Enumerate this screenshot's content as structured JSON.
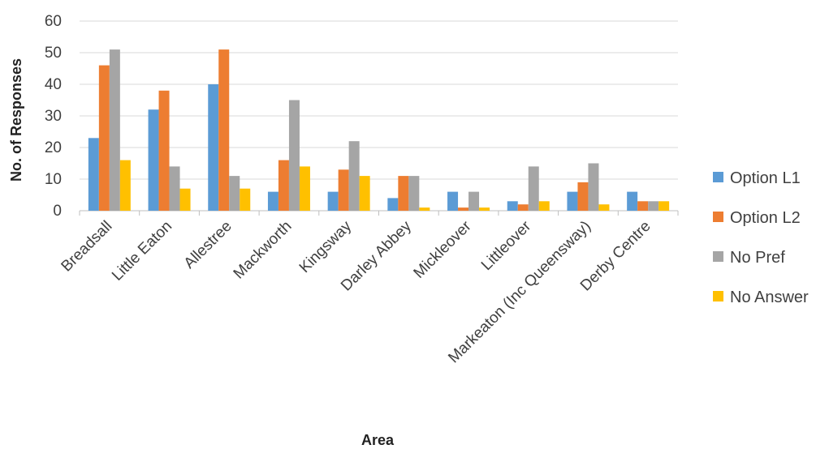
{
  "chart_data": {
    "type": "bar",
    "xlabel": "Area",
    "ylabel": "No. of Responses",
    "ylim": [
      0,
      60
    ],
    "yticks": [
      0,
      10,
      20,
      30,
      40,
      50,
      60
    ],
    "grid": true,
    "legend_position": "right",
    "categories": [
      "Breadsall",
      "Little Eaton",
      "Allestree",
      "Mackworth",
      "Kingsway",
      "Darley Abbey",
      "Mickleover",
      "Littleover",
      "Markeaton (Inc Queensway)",
      "Derby Centre"
    ],
    "series": [
      {
        "name": "Option L1",
        "color": "#5b9bd5",
        "values": [
          23,
          32,
          40,
          6,
          6,
          4,
          6,
          3,
          6,
          6
        ]
      },
      {
        "name": "Option L2",
        "color": "#ed7d31",
        "values": [
          46,
          38,
          51,
          16,
          13,
          11,
          1,
          2,
          9,
          3
        ]
      },
      {
        "name": "No Pref",
        "color": "#a5a5a5",
        "values": [
          51,
          14,
          11,
          35,
          22,
          11,
          6,
          14,
          15,
          3
        ]
      },
      {
        "name": "No Answer",
        "color": "#ffc000",
        "values": [
          16,
          7,
          7,
          14,
          11,
          1,
          1,
          3,
          2,
          3
        ]
      }
    ]
  }
}
